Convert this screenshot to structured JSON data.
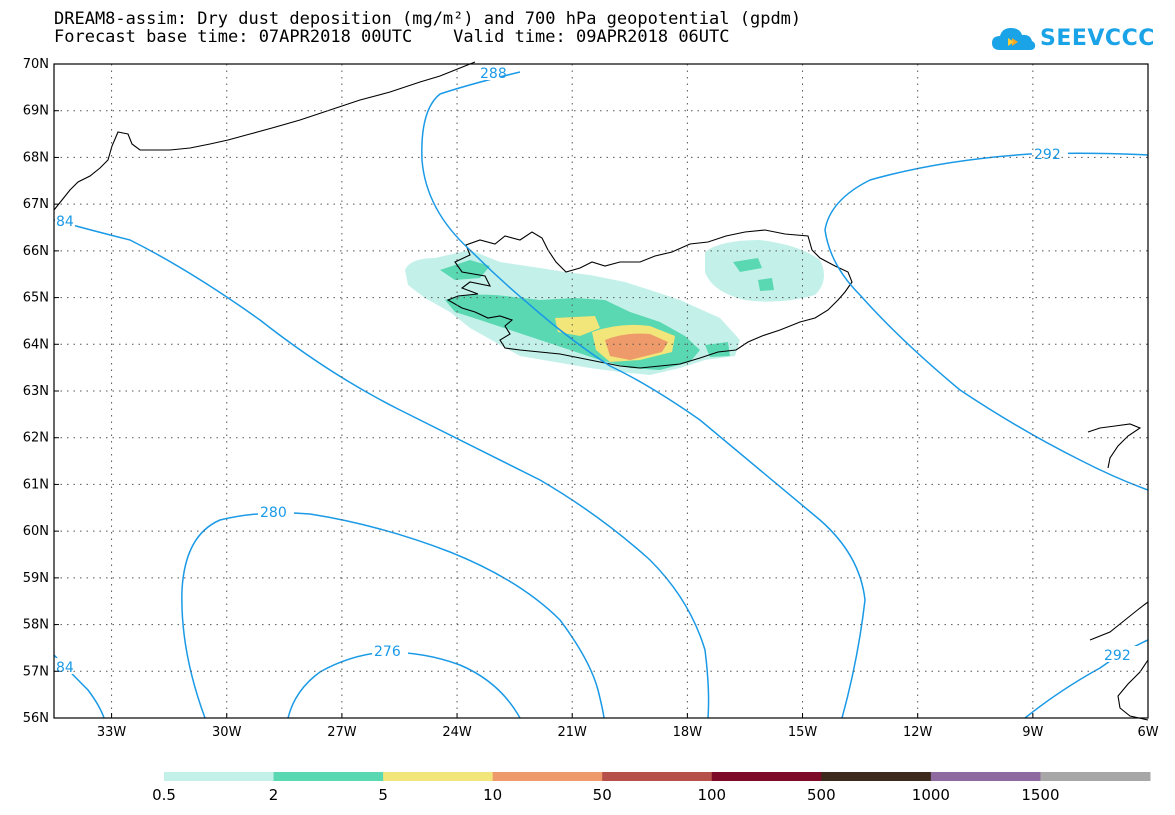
{
  "header": {
    "title_line1": "DREAM8-assim: Dry dust deposition (mg/m²) and 700 hPa geopotential (gpdm)",
    "title_line2": "Forecast base time: 07APR2018 00UTC    Valid time: 09APR2018 06UTC"
  },
  "logo": {
    "text": "SEEVCCC",
    "icon": "cloud-icon",
    "color": "#1aa3e6"
  },
  "map": {
    "lat_range": [
      56,
      70
    ],
    "lon_range": [
      -34.5,
      -6
    ],
    "lat_labels": [
      "70N",
      "69N",
      "68N",
      "67N",
      "66N",
      "65N",
      "64N",
      "63N",
      "62N",
      "61N",
      "60N",
      "59N",
      "58N",
      "57N",
      "56N"
    ],
    "lon_labels": [
      "33W",
      "30W",
      "27W",
      "24W",
      "21W",
      "18W",
      "15W",
      "12W",
      "9W",
      "6W"
    ],
    "grid": "dotted",
    "contour_color": "#1a9ae6",
    "contour_labels": [
      "288",
      "292",
      "280",
      "276",
      "84",
      "84",
      "292"
    ]
  },
  "colorbar": {
    "labels": [
      "0.5",
      "2",
      "5",
      "10",
      "50",
      "100",
      "500",
      "1000",
      "1500"
    ],
    "colors": [
      "#c3f1ea",
      "#5ad8b2",
      "#f2e57a",
      "#ee9a6a",
      "#b5514a",
      "#7d0a26",
      "#3d2a1c",
      "#8e6aa0",
      "#a7a7a7"
    ]
  }
}
